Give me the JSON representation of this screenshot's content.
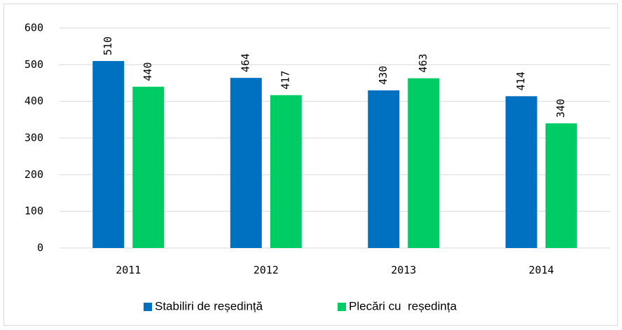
{
  "chart_data": {
    "type": "bar",
    "categories": [
      "2011",
      "2012",
      "2013",
      "2014"
    ],
    "series": [
      {
        "name": "Stabiliri de reședință",
        "color": "#0070c0",
        "values": [
          510,
          464,
          430,
          414
        ]
      },
      {
        "name": "Plecări cu  reședința",
        "color": "#00cc66",
        "values": [
          440,
          417,
          463,
          340
        ]
      }
    ],
    "ylim": [
      0,
      600
    ],
    "yticks": [
      0,
      100,
      200,
      300,
      400,
      500,
      600
    ],
    "grid": true,
    "legend": "bottom"
  }
}
